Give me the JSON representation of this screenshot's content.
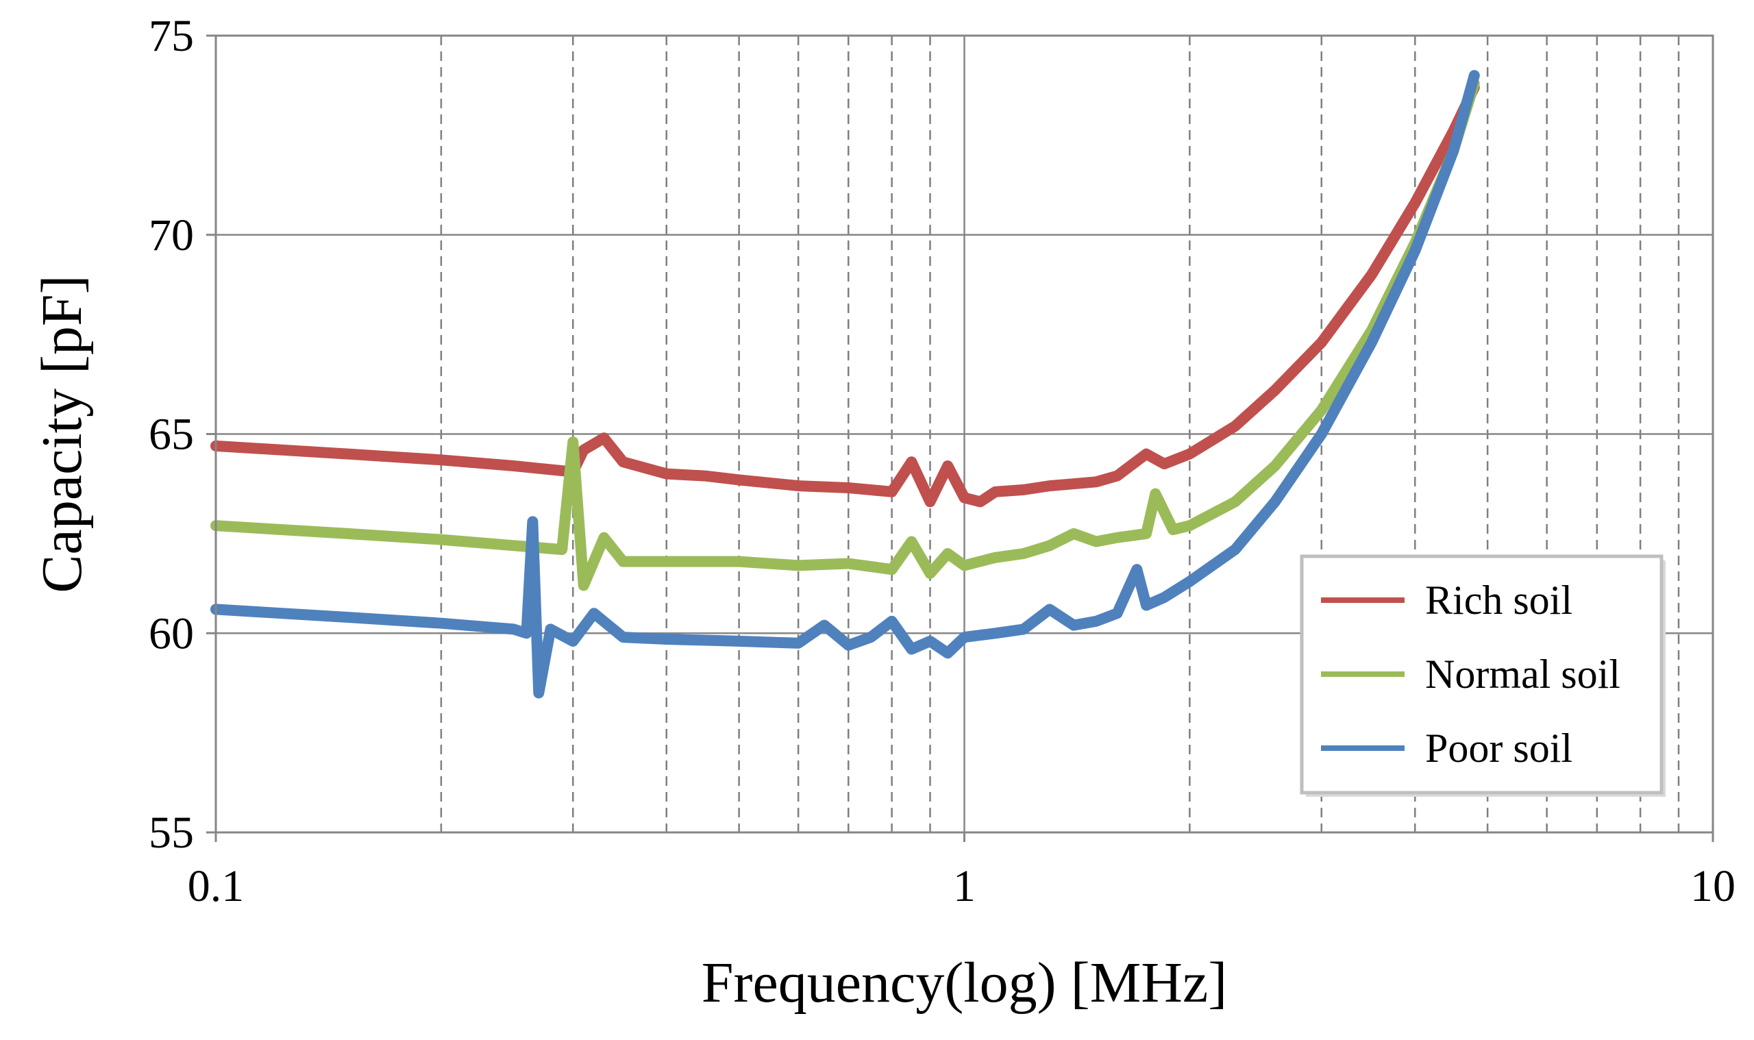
{
  "chart_data": {
    "type": "line",
    "xlabel": "Frequency(log) [MHz]",
    "ylabel": "Capacity [pF]",
    "x_scale": "log",
    "xlim": [
      0.1,
      10
    ],
    "ylim": [
      55,
      75
    ],
    "x_ticks": [
      0.1,
      1,
      10
    ],
    "x_tick_labels": [
      "0.1",
      "1",
      "10"
    ],
    "y_ticks": [
      55,
      60,
      65,
      70,
      75
    ],
    "y_tick_labels": [
      "55",
      "60",
      "65",
      "70",
      "75"
    ],
    "grid": {
      "major": "solid",
      "minor_x": "dashed"
    },
    "legend_position": "lower-right",
    "series": [
      {
        "name": "Rich soil",
        "color": "#c0504d",
        "x": [
          0.1,
          0.15,
          0.2,
          0.25,
          0.3,
          0.31,
          0.33,
          0.35,
          0.4,
          0.45,
          0.5,
          0.6,
          0.7,
          0.8,
          0.85,
          0.9,
          0.95,
          1.0,
          1.05,
          1.1,
          1.2,
          1.3,
          1.4,
          1.5,
          1.6,
          1.75,
          1.85,
          2.0,
          2.3,
          2.6,
          3.0,
          3.5,
          4.0,
          4.5,
          4.8
        ],
        "y": [
          64.7,
          64.5,
          64.35,
          64.2,
          64.05,
          64.6,
          64.9,
          64.3,
          64.0,
          63.95,
          63.85,
          63.7,
          63.65,
          63.55,
          64.3,
          63.3,
          64.2,
          63.4,
          63.3,
          63.55,
          63.6,
          63.7,
          63.75,
          63.8,
          63.95,
          64.5,
          64.25,
          64.5,
          65.2,
          66.1,
          67.3,
          69.0,
          70.8,
          72.6,
          73.7
        ]
      },
      {
        "name": "Normal soil",
        "color": "#9bbb59",
        "x": [
          0.1,
          0.15,
          0.2,
          0.25,
          0.29,
          0.3,
          0.31,
          0.33,
          0.35,
          0.4,
          0.5,
          0.6,
          0.7,
          0.8,
          0.85,
          0.9,
          0.95,
          1.0,
          1.1,
          1.2,
          1.3,
          1.4,
          1.5,
          1.6,
          1.75,
          1.8,
          1.9,
          2.0,
          2.3,
          2.6,
          3.0,
          3.5,
          4.0,
          4.5,
          4.8
        ],
        "y": [
          62.7,
          62.5,
          62.35,
          62.2,
          62.1,
          64.8,
          61.2,
          62.4,
          61.8,
          61.8,
          61.8,
          61.7,
          61.75,
          61.6,
          62.3,
          61.5,
          62.0,
          61.7,
          61.9,
          62.0,
          62.2,
          62.5,
          62.3,
          62.4,
          62.5,
          63.5,
          62.6,
          62.7,
          63.3,
          64.2,
          65.6,
          67.6,
          69.8,
          72.1,
          73.8
        ]
      },
      {
        "name": "Poor soil",
        "color": "#4f81bd",
        "x": [
          0.1,
          0.15,
          0.2,
          0.25,
          0.26,
          0.265,
          0.27,
          0.28,
          0.3,
          0.32,
          0.35,
          0.4,
          0.5,
          0.6,
          0.65,
          0.7,
          0.75,
          0.8,
          0.85,
          0.9,
          0.95,
          1.0,
          1.1,
          1.2,
          1.3,
          1.4,
          1.5,
          1.6,
          1.7,
          1.75,
          1.85,
          2.0,
          2.3,
          2.6,
          3.0,
          3.5,
          4.0,
          4.5,
          4.8
        ],
        "y": [
          60.6,
          60.4,
          60.25,
          60.1,
          60.0,
          62.8,
          58.5,
          60.1,
          59.8,
          60.5,
          59.9,
          59.85,
          59.8,
          59.75,
          60.2,
          59.7,
          59.9,
          60.3,
          59.6,
          59.8,
          59.5,
          59.9,
          60.0,
          60.1,
          60.6,
          60.2,
          60.3,
          60.5,
          61.6,
          60.7,
          60.9,
          61.3,
          62.1,
          63.3,
          65.0,
          67.3,
          69.6,
          72.1,
          74.0
        ]
      }
    ]
  }
}
